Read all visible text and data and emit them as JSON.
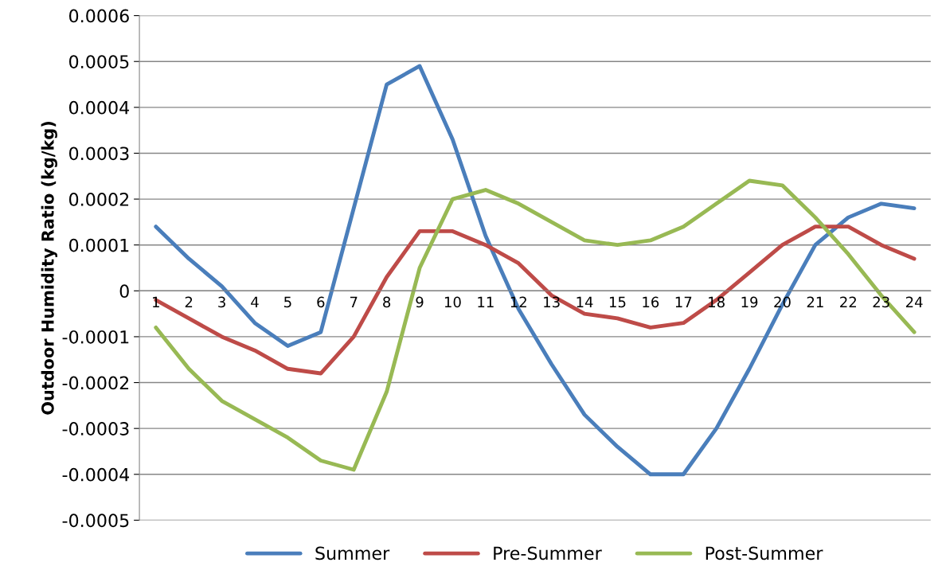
{
  "chart_data": {
    "type": "line",
    "ylabel": "Outdoor Humidity Ratio (kg/kg)",
    "categories": [
      "1",
      "2",
      "3",
      "4",
      "5",
      "6",
      "7",
      "8",
      "9",
      "10",
      "11",
      "12",
      "13",
      "14",
      "15",
      "16",
      "17",
      "18",
      "19",
      "20",
      "21",
      "22",
      "23",
      "24"
    ],
    "series": [
      {
        "name": "Summer",
        "color": "#4a7ebb",
        "values": [
          0.00014,
          7e-05,
          1e-05,
          -7e-05,
          -0.00012,
          -9e-05,
          0.00018,
          0.00045,
          0.00049,
          0.00033,
          0.00012,
          -4e-05,
          -0.00016,
          -0.00027,
          -0.00034,
          -0.0004,
          -0.0004,
          -0.0003,
          -0.00017,
          -3e-05,
          0.0001,
          0.00016,
          0.00019,
          0.00018
        ]
      },
      {
        "name": "Pre-Summer",
        "color": "#be4b48",
        "values": [
          -2e-05,
          -6e-05,
          -0.0001,
          -0.00013,
          -0.00017,
          -0.00018,
          -0.0001,
          3e-05,
          0.00013,
          0.00013,
          0.0001,
          6e-05,
          -1e-05,
          -5e-05,
          -6e-05,
          -8e-05,
          -7e-05,
          -2e-05,
          4e-05,
          0.0001,
          0.00014,
          0.00014,
          0.0001,
          7e-05
        ]
      },
      {
        "name": "Post-Summer",
        "color": "#98b954",
        "values": [
          -8e-05,
          -0.00017,
          -0.00024,
          -0.00028,
          -0.00032,
          -0.00037,
          -0.00039,
          -0.00022,
          5e-05,
          0.0002,
          0.00022,
          0.00019,
          0.00015,
          0.00011,
          0.0001,
          0.00011,
          0.00014,
          0.00019,
          0.00024,
          0.00023,
          0.00016,
          8e-05,
          -1e-05,
          -9e-05
        ]
      }
    ],
    "ylim": [
      -0.0005,
      0.0006
    ],
    "yticks": [
      {
        "value": -0.0005,
        "label": "-0.0005"
      },
      {
        "value": -0.0004,
        "label": "-0.0004"
      },
      {
        "value": -0.0003,
        "label": "-0.0003"
      },
      {
        "value": -0.0002,
        "label": "-0.0002"
      },
      {
        "value": -0.0001,
        "label": "-0.0001"
      },
      {
        "value": 0,
        "label": "0"
      },
      {
        "value": 0.0001,
        "label": "0.0001"
      },
      {
        "value": 0.0002,
        "label": "0.0002"
      },
      {
        "value": 0.0003,
        "label": "0.0003"
      },
      {
        "value": 0.0004,
        "label": "0.0004"
      },
      {
        "value": 0.0005,
        "label": "0.0005"
      },
      {
        "value": 0.0006,
        "label": "0.0006"
      }
    ],
    "grid": "y",
    "legend": "bottom",
    "marker": "none",
    "line_style": "solid"
  }
}
